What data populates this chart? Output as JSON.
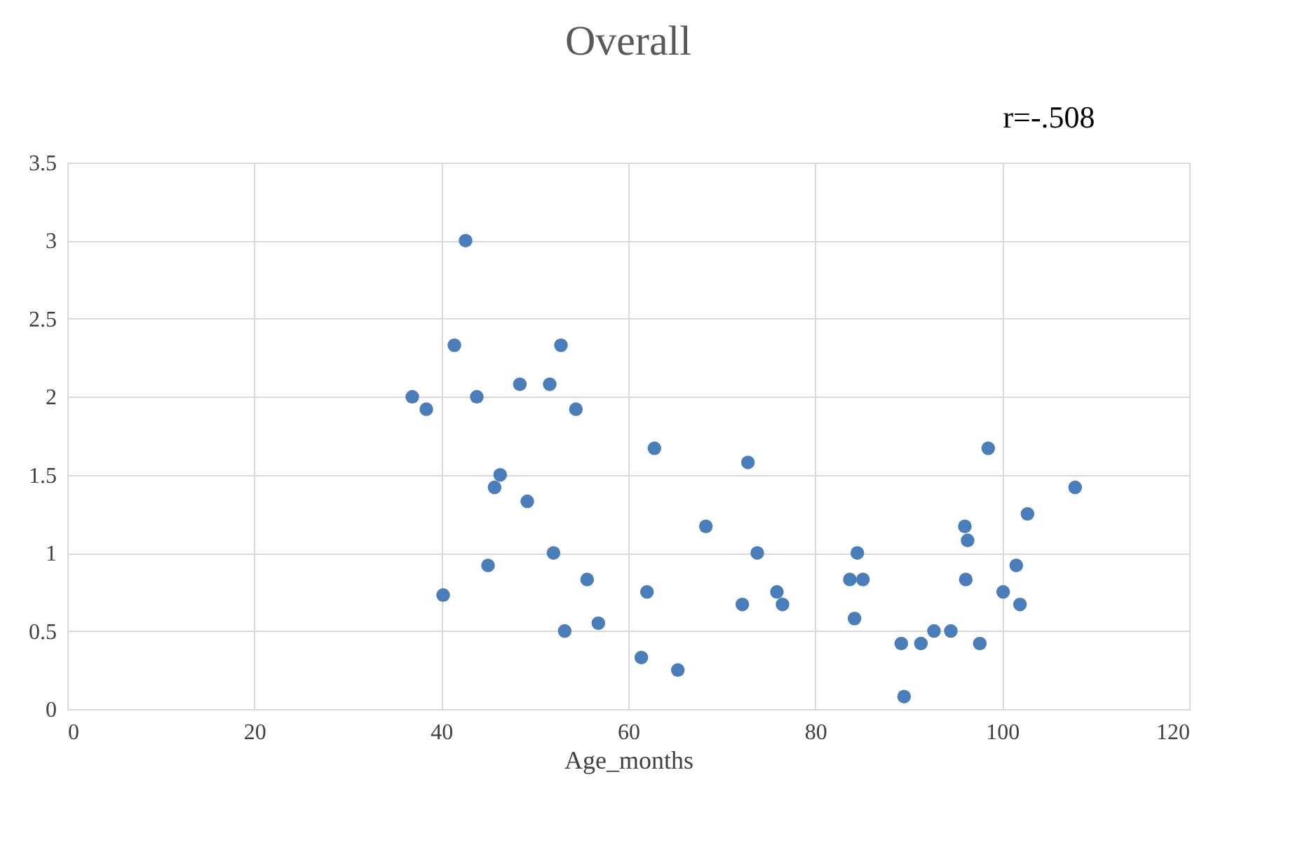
{
  "chart_data": {
    "type": "scatter",
    "title": "Overall",
    "xlabel": "Age_months",
    "annotations": [
      "r=-.508"
    ],
    "x": [
      36.9,
      38.4,
      40.2,
      41.4,
      42.6,
      43.8,
      45.0,
      45.7,
      46.3,
      48.4,
      49.2,
      51.6,
      52.0,
      52.8,
      53.2,
      54.4,
      55.6,
      56.8,
      61.4,
      62.0,
      62.8,
      65.3,
      68.3,
      72.2,
      72.8,
      73.8,
      75.9,
      76.5,
      83.7,
      84.2,
      84.5,
      85.1,
      89.2,
      89.5,
      91.3,
      92.7,
      94.5,
      96.0,
      96.3,
      96.1,
      97.6,
      98.5,
      100.1,
      101.5,
      101.9,
      102.7,
      107.8
    ],
    "values": [
      2.0,
      1.92,
      0.73,
      2.33,
      3.0,
      2.0,
      0.92,
      1.42,
      1.5,
      2.08,
      1.33,
      2.08,
      1.0,
      2.33,
      0.5,
      1.92,
      0.83,
      0.55,
      0.33,
      0.75,
      1.67,
      0.25,
      1.17,
      0.67,
      1.58,
      1.0,
      0.75,
      0.67,
      0.83,
      0.58,
      1.0,
      0.83,
      0.42,
      0.08,
      0.42,
      0.5,
      0.5,
      1.17,
      1.08,
      0.83,
      0.42,
      1.67,
      0.75,
      0.92,
      0.67,
      1.25,
      1.42
    ],
    "color": "#4a7ebb",
    "marker": "circle",
    "xlim": [
      0,
      120
    ],
    "xticks": [
      0,
      20,
      40,
      60,
      80,
      100,
      120
    ],
    "ylim": [
      0,
      3.5
    ],
    "yticks": [
      0,
      0.5,
      1,
      1.5,
      2,
      2.5,
      3,
      3.5
    ],
    "grid": true
  }
}
